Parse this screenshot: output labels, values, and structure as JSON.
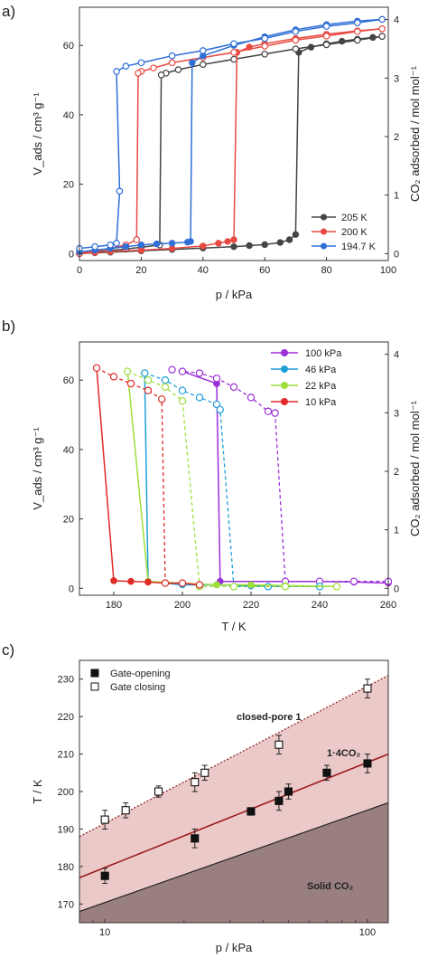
{
  "chart_data": [
    {
      "panel": "a)",
      "type": "line",
      "xlabel": "p / kPa",
      "ylabel": "V_ads / cm³ g⁻¹",
      "y2label": "CO₂ adsorbed / mol mol⁻¹",
      "xlim": [
        0,
        100
      ],
      "ylim": [
        -2,
        71
      ],
      "y2lim": [
        0,
        4
      ],
      "xticks": [
        "0",
        "20",
        "40",
        "60",
        "80",
        "100"
      ],
      "yticks": [
        "0",
        "20",
        "40",
        "60"
      ],
      "y2ticks": [
        "0",
        "1",
        "2",
        "3",
        "4"
      ],
      "legend_position": "bottom-right",
      "series": [
        {
          "name": "205 K",
          "color": "#444444",
          "adsorption": [
            [
              0,
              0
            ],
            [
              5,
              0.2
            ],
            [
              10,
              0.4
            ],
            [
              20,
              0.8
            ],
            [
              30,
              1.2
            ],
            [
              40,
              1.6
            ],
            [
              50,
              2
            ],
            [
              55,
              2.3
            ],
            [
              60,
              2.6
            ],
            [
              65,
              3.2
            ],
            [
              68,
              4
            ],
            [
              70,
              5.5
            ],
            [
              71,
              58
            ],
            [
              75,
              59.5
            ],
            [
              80,
              60.5
            ],
            [
              85,
              61.2
            ],
            [
              90,
              61.8
            ],
            [
              95,
              62.3
            ],
            [
              98,
              62.6
            ]
          ],
          "desorption": [
            [
              98,
              62.6
            ],
            [
              90,
              61.5
            ],
            [
              80,
              60.2
            ],
            [
              70,
              59
            ],
            [
              60,
              57.5
            ],
            [
              50,
              56
            ],
            [
              40,
              54.5
            ],
            [
              32,
              53
            ],
            [
              28,
              52
            ],
            [
              26.5,
              51.5
            ],
            [
              26,
              2.5
            ],
            [
              20,
              1.8
            ],
            [
              15,
              1.3
            ],
            [
              10,
              0.9
            ],
            [
              5,
              0.5
            ],
            [
              0,
              0
            ]
          ]
        },
        {
          "name": "200 K",
          "color": "#e84a43",
          "adsorption": [
            [
              0,
              0
            ],
            [
              5,
              0.3
            ],
            [
              10,
              0.6
            ],
            [
              20,
              1
            ],
            [
              30,
              1.5
            ],
            [
              40,
              2.2
            ],
            [
              45,
              3
            ],
            [
              48,
              3.5
            ],
            [
              50,
              4
            ],
            [
              51,
              58
            ],
            [
              55,
              59.5
            ],
            [
              60,
              60.5
            ],
            [
              70,
              62
            ],
            [
              80,
              63.2
            ],
            [
              90,
              64.2
            ],
            [
              98,
              64.8
            ]
          ],
          "desorption": [
            [
              98,
              64.8
            ],
            [
              90,
              64
            ],
            [
              80,
              62.7
            ],
            [
              70,
              61.5
            ],
            [
              60,
              59.8
            ],
            [
              50,
              58
            ],
            [
              40,
              56.5
            ],
            [
              30,
              55
            ],
            [
              24,
              53.5
            ],
            [
              20,
              52.5
            ],
            [
              19,
              52
            ],
            [
              18.5,
              4
            ],
            [
              15,
              2.5
            ],
            [
              10,
              1.5
            ],
            [
              5,
              0.8
            ],
            [
              0,
              0
            ]
          ]
        },
        {
          "name": "194.7 K",
          "color": "#2f6fd6",
          "adsorption": [
            [
              0,
              0.5
            ],
            [
              5,
              1
            ],
            [
              10,
              1.5
            ],
            [
              15,
              2
            ],
            [
              20,
              2.5
            ],
            [
              25,
              2.8
            ],
            [
              30,
              3
            ],
            [
              35,
              3.3
            ],
            [
              36,
              3.5
            ],
            [
              36.5,
              55
            ],
            [
              40,
              57
            ],
            [
              50,
              60
            ],
            [
              60,
              62.5
            ],
            [
              70,
              64.5
            ],
            [
              80,
              66
            ],
            [
              90,
              67
            ],
            [
              98,
              67.5
            ]
          ],
          "desorption": [
            [
              98,
              67.5
            ],
            [
              90,
              66.5
            ],
            [
              80,
              65.5
            ],
            [
              70,
              64
            ],
            [
              60,
              62
            ],
            [
              50,
              60.5
            ],
            [
              40,
              58.5
            ],
            [
              30,
              57
            ],
            [
              20,
              55
            ],
            [
              15,
              54
            ],
            [
              12,
              52.5
            ],
            [
              13,
              18
            ],
            [
              12,
              3
            ],
            [
              10,
              2.5
            ],
            [
              5,
              2
            ],
            [
              0,
              1.5
            ]
          ]
        }
      ]
    },
    {
      "panel": "b)",
      "type": "line",
      "xlabel": "T / K",
      "ylabel": "V_ads / cm³ g⁻¹",
      "y2label": "CO₂ adsorbed / mol mol⁻¹",
      "xlim": [
        170,
        260
      ],
      "ylim": [
        -2,
        71
      ],
      "y2lim": [
        0,
        4
      ],
      "xticks": [
        "180",
        "200",
        "220",
        "240",
        "260"
      ],
      "yticks": [
        "0",
        "20",
        "40",
        "60"
      ],
      "y2ticks": [
        "0",
        "1",
        "2",
        "3",
        "4"
      ],
      "legend_position": "top-right",
      "series": [
        {
          "name": "100 kPa",
          "color": "#9b30d9",
          "cooling": [
            [
              260,
              1.5
            ],
            [
              250,
              1.8
            ],
            [
              240,
              2
            ],
            [
              230,
              2
            ],
            [
              211,
              2
            ],
            [
              210,
              59
            ],
            [
              200,
              62.5
            ]
          ],
          "heating": [
            [
              197,
              63
            ],
            [
              200,
              62.5
            ],
            [
              205,
              62
            ],
            [
              210,
              60.5
            ],
            [
              215,
              58
            ],
            [
              220,
              55
            ],
            [
              225,
              51
            ],
            [
              227,
              50.5
            ],
            [
              230,
              2
            ],
            [
              240,
              2
            ],
            [
              250,
              2
            ],
            [
              260,
              2
            ]
          ]
        },
        {
          "name": "46 kPa",
          "color": "#1e9fd8",
          "cooling": [
            [
              230,
              0.5
            ],
            [
              220,
              0.7
            ],
            [
              210,
              1
            ],
            [
              200,
              1
            ],
            [
              190,
              2
            ],
            [
              189,
              62
            ]
          ],
          "heating": [
            [
              189,
              62
            ],
            [
              195,
              60
            ],
            [
              200,
              57
            ],
            [
              205,
              55
            ],
            [
              210,
              53
            ],
            [
              211,
              51.5
            ],
            [
              215,
              0.5
            ],
            [
              225,
              0.5
            ],
            [
              240,
              0.5
            ]
          ]
        },
        {
          "name": "22 kPa",
          "color": "#9edf3a",
          "cooling": [
            [
              245,
              0.5
            ],
            [
              230,
              0.8
            ],
            [
              220,
              1
            ],
            [
              210,
              1
            ],
            [
              200,
              1.5
            ],
            [
              190,
              2
            ],
            [
              184,
              62.5
            ]
          ],
          "heating": [
            [
              184,
              62.5
            ],
            [
              190,
              60
            ],
            [
              195,
              58
            ],
            [
              200,
              54
            ],
            [
              205,
              0.5
            ],
            [
              215,
              0.5
            ],
            [
              230,
              0.5
            ],
            [
              245,
              0.5
            ]
          ]
        },
        {
          "name": "10 kPa",
          "color": "#e02a28",
          "cooling": [
            [
              205,
              1
            ],
            [
              200,
              1.5
            ],
            [
              195,
              1.5
            ],
            [
              190,
              1.8
            ],
            [
              185,
              2
            ],
            [
              180,
              2.2
            ],
            [
              175,
              63.5
            ]
          ],
          "heating": [
            [
              175,
              63.5
            ],
            [
              180,
              61
            ],
            [
              185,
              59
            ],
            [
              190,
              57
            ],
            [
              194,
              54.5
            ],
            [
              195,
              1.5
            ],
            [
              200,
              1.5
            ],
            [
              205,
              1
            ]
          ]
        }
      ]
    },
    {
      "panel": "c)",
      "type": "scatter",
      "xlabel": "p / kPa",
      "ylabel": "T / K",
      "x_scale": "log",
      "xlim": [
        8,
        120
      ],
      "ylim": [
        165,
        235
      ],
      "xticks": [
        "10",
        "100"
      ],
      "yticks": [
        "170",
        "180",
        "190",
        "200",
        "210",
        "220",
        "230"
      ],
      "legend_position": "top-left",
      "region_labels": [
        "closed-pore 1",
        "1·4CO₂",
        "Solid CO₂"
      ],
      "series": [
        {
          "name": "Gate-opening",
          "marker": "filled-square",
          "points": [
            [
              10,
              177.5
            ],
            [
              22,
              187.5
            ],
            [
              36,
              194.7
            ],
            [
              46,
              197.5
            ],
            [
              50,
              200
            ],
            [
              70,
              205
            ],
            [
              100,
              207.5
            ]
          ],
          "err": [
            2,
            2.5,
            1,
            2.5,
            2,
            2,
            2.5
          ]
        },
        {
          "name": "Gate closing",
          "marker": "open-square",
          "points": [
            [
              10,
              192.5
            ],
            [
              12,
              195
            ],
            [
              16,
              200
            ],
            [
              22,
              202.5
            ],
            [
              24,
              205
            ],
            [
              46,
              212.5
            ],
            [
              100,
              227.5
            ]
          ],
          "err": [
            2.5,
            2,
            1.5,
            2.5,
            2,
            2.5,
            2.5
          ]
        }
      ],
      "boundaries": {
        "closed_pore_upper": [
          [
            8,
            188
          ],
          [
            120,
            231
          ]
        ],
        "complex_line": [
          [
            8,
            177
          ],
          [
            120,
            210
          ]
        ],
        "solid_co2": [
          [
            8,
            168
          ],
          [
            120,
            197
          ]
        ]
      }
    }
  ]
}
